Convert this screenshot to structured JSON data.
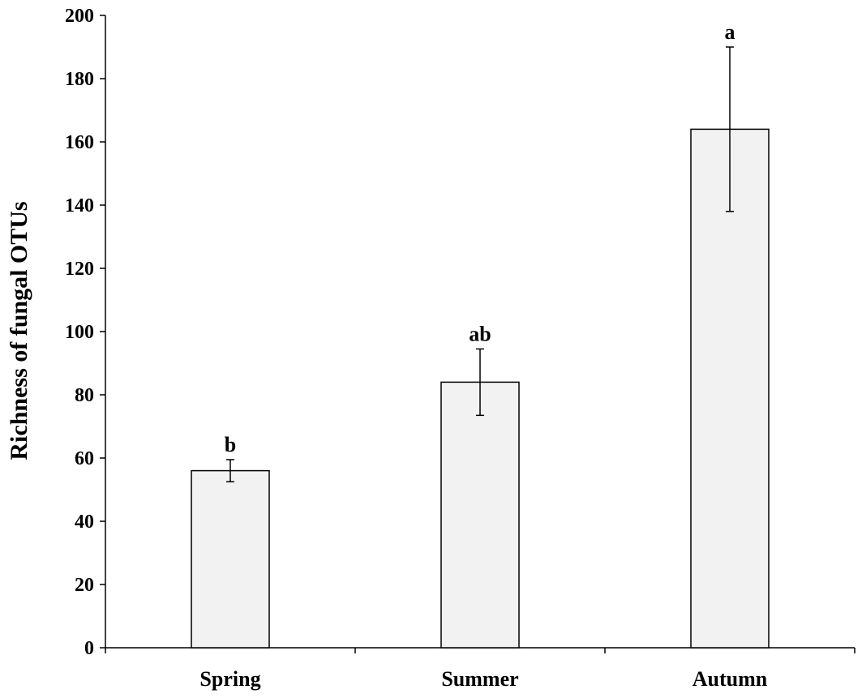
{
  "chart_data": {
    "type": "bar",
    "title": "",
    "xlabel": "",
    "ylabel": "Richness of fungal OTUs",
    "ylim": [
      0,
      200
    ],
    "yticks": [
      0,
      20,
      40,
      60,
      80,
      100,
      120,
      140,
      160,
      180,
      200
    ],
    "categories": [
      "Spring",
      "Summer",
      "Autumn"
    ],
    "values": [
      56,
      84,
      164
    ],
    "errors": [
      3.5,
      10.5,
      26
    ],
    "significance": [
      "b",
      "ab",
      "a"
    ],
    "grid": false,
    "legend": "none",
    "colors": {
      "bar_fill": "#f2f2f2",
      "bar_stroke": "#000000",
      "axis": "#000000"
    }
  }
}
